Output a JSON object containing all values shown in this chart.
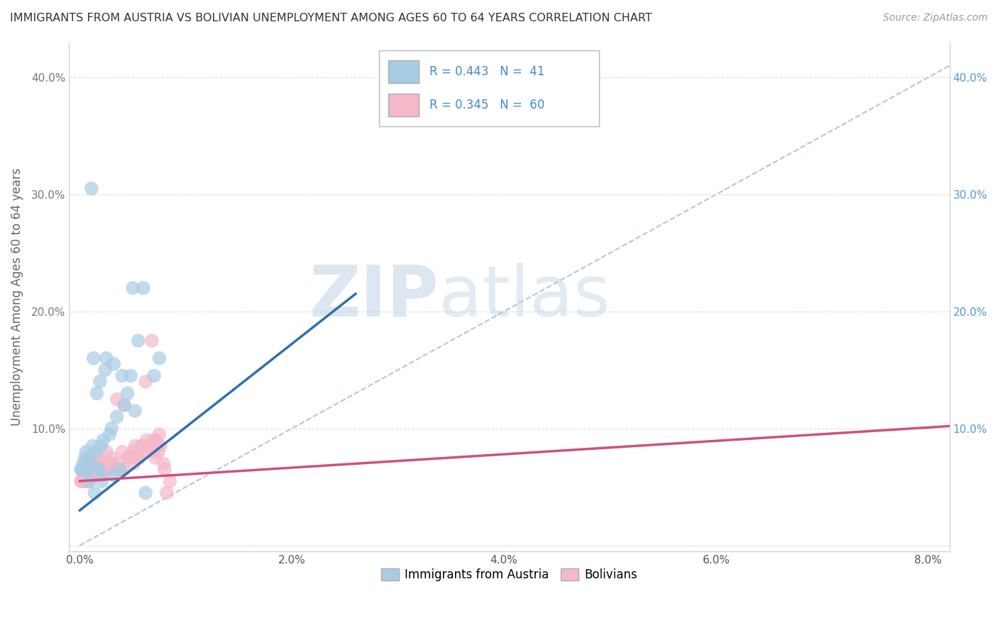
{
  "title": "IMMIGRANTS FROM AUSTRIA VS BOLIVIAN UNEMPLOYMENT AMONG AGES 60 TO 64 YEARS CORRELATION CHART",
  "source": "Source: ZipAtlas.com",
  "ylabel": "Unemployment Among Ages 60 to 64 years",
  "x_ticks": [
    0.0,
    0.01,
    0.02,
    0.03,
    0.04,
    0.05,
    0.06,
    0.07,
    0.08
  ],
  "x_tick_labels": [
    "0.0%",
    "",
    "2.0%",
    "",
    "4.0%",
    "",
    "6.0%",
    "",
    "8.0%"
  ],
  "y_ticks": [
    0.0,
    0.1,
    0.2,
    0.3,
    0.4
  ],
  "y_tick_labels_left": [
    "",
    "10.0%",
    "20.0%",
    "30.0%",
    "40.0%"
  ],
  "y_tick_labels_right": [
    "",
    "10.0%",
    "20.0%",
    "30.0%",
    "40.0%"
  ],
  "xlim": [
    -0.001,
    0.082
  ],
  "ylim": [
    -0.005,
    0.43
  ],
  "legend_blue_label": "Immigrants from Austria",
  "legend_pink_label": "Bolivians",
  "legend_R_blue": "R = 0.443",
  "legend_N_blue": "N =  41",
  "legend_R_pink": "R = 0.345",
  "legend_N_pink": "N =  60",
  "blue_color": "#a8cce4",
  "pink_color": "#f4b8c8",
  "blue_line_color": "#3070b0",
  "pink_line_color": "#d05080",
  "dashed_line_color": "#b0c8e0",
  "scatter_blue_x": [
    0.0003,
    0.0005,
    0.0007,
    0.001,
    0.0012,
    0.0015,
    0.0018,
    0.002,
    0.0022,
    0.0025,
    0.003,
    0.0032,
    0.0035,
    0.004,
    0.0042,
    0.0045,
    0.005,
    0.0055,
    0.006,
    0.007,
    0.0075,
    0.0018,
    0.0009,
    0.0021,
    0.0014,
    0.0028,
    0.0032,
    0.0048,
    0.0038,
    0.0052,
    0.0062,
    0.0001,
    0.0002,
    0.0004,
    0.0006,
    0.0008,
    0.0013,
    0.0016,
    0.0019,
    0.0024,
    0.0011
  ],
  "scatter_blue_y": [
    0.07,
    0.075,
    0.065,
    0.075,
    0.085,
    0.08,
    0.065,
    0.085,
    0.09,
    0.16,
    0.1,
    0.155,
    0.11,
    0.145,
    0.12,
    0.13,
    0.22,
    0.175,
    0.22,
    0.145,
    0.16,
    0.065,
    0.055,
    0.055,
    0.045,
    0.095,
    0.06,
    0.145,
    0.065,
    0.115,
    0.045,
    0.065,
    0.065,
    0.065,
    0.08,
    0.07,
    0.16,
    0.13,
    0.14,
    0.15,
    0.305
  ],
  "scatter_pink_x": [
    0.0002,
    0.0004,
    0.0006,
    0.0008,
    0.001,
    0.0012,
    0.0015,
    0.0018,
    0.002,
    0.0022,
    0.0025,
    0.003,
    0.0032,
    0.0035,
    0.004,
    0.0042,
    0.0045,
    0.005,
    0.0055,
    0.006,
    0.007,
    0.0075,
    0.0014,
    0.0009,
    0.0021,
    0.0028,
    0.0048,
    0.0038,
    0.0052,
    0.0062,
    0.0068,
    0.0072,
    0.0005,
    0.0007,
    0.0011,
    0.0016,
    0.0019,
    0.0024,
    0.0027,
    0.0031,
    0.0036,
    0.0041,
    0.0046,
    0.0051,
    0.0056,
    0.0061,
    0.0066,
    0.0071,
    0.0076,
    0.008,
    0.0035,
    0.0058,
    0.0063,
    0.0069,
    0.0074,
    0.0079,
    0.0001,
    0.0003,
    0.0082,
    0.0085
  ],
  "scatter_pink_y": [
    0.055,
    0.06,
    0.055,
    0.06,
    0.065,
    0.06,
    0.07,
    0.075,
    0.065,
    0.07,
    0.08,
    0.075,
    0.065,
    0.07,
    0.08,
    0.12,
    0.075,
    0.08,
    0.075,
    0.085,
    0.09,
    0.095,
    0.06,
    0.055,
    0.06,
    0.07,
    0.075,
    0.065,
    0.085,
    0.14,
    0.175,
    0.09,
    0.055,
    0.055,
    0.06,
    0.065,
    0.06,
    0.07,
    0.065,
    0.07,
    0.065,
    0.065,
    0.075,
    0.07,
    0.075,
    0.08,
    0.085,
    0.075,
    0.085,
    0.065,
    0.125,
    0.085,
    0.09,
    0.08,
    0.08,
    0.07,
    0.055,
    0.055,
    0.045,
    0.055
  ],
  "blue_trend_x": [
    0.0,
    0.026
  ],
  "blue_trend_y": [
    0.03,
    0.215
  ],
  "pink_trend_x": [
    0.0,
    0.082
  ],
  "pink_trend_y": [
    0.055,
    0.102
  ],
  "dashed_trend_x": [
    0.0,
    0.082
  ],
  "dashed_trend_y": [
    0.0,
    0.41
  ],
  "background_color": "#ffffff",
  "grid_color": "#cccccc"
}
